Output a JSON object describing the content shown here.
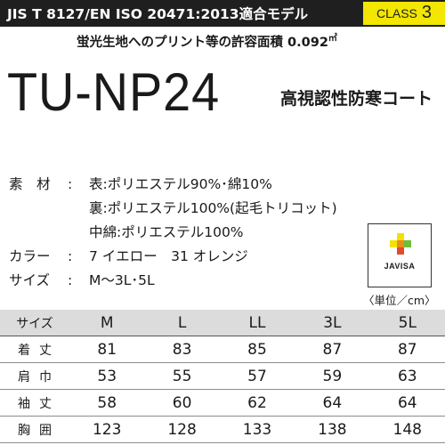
{
  "header": {
    "standard": "JIS T 8127/EN ISO 20471:2013適合モデル",
    "class_word": "CLASS",
    "class_num": "3",
    "area_note": "蛍光生地へのプリント等の許容面積 0.092",
    "area_unit": "㎡"
  },
  "product": {
    "model": "TU-NP24",
    "name": "高視認性防寒コート"
  },
  "specs": [
    {
      "label": "素　材",
      "value": "表:ポリエステル90%･綿10%"
    },
    {
      "label": "",
      "value": "裏:ポリエステル100%(起毛トリコット)"
    },
    {
      "label": "",
      "value": "中綿:ポリエステル100%"
    },
    {
      "label": "カラー",
      "value": "7 イエロー　31 オレンジ"
    },
    {
      "label": "サイズ",
      "value": "M〜3L･5L"
    }
  ],
  "javisa": {
    "text": "JAVISA",
    "colors": {
      "yellow": "#f2e200",
      "orange": "#f08a1a",
      "green": "#6cbf3a",
      "red": "#e24a2a"
    }
  },
  "unit_note": "〈単位／cm〉",
  "size_table": {
    "header_label": "サイズ",
    "sizes": [
      "M",
      "L",
      "LL",
      "3L",
      "5L"
    ],
    "rows": [
      {
        "label": "着丈",
        "values": [
          "81",
          "83",
          "85",
          "87",
          "87"
        ]
      },
      {
        "label": "肩巾",
        "values": [
          "53",
          "55",
          "57",
          "59",
          "63"
        ]
      },
      {
        "label": "袖丈",
        "values": [
          "58",
          "60",
          "62",
          "64",
          "64"
        ]
      },
      {
        "label": "胸囲",
        "values": [
          "123",
          "128",
          "133",
          "138",
          "148"
        ]
      }
    ]
  }
}
